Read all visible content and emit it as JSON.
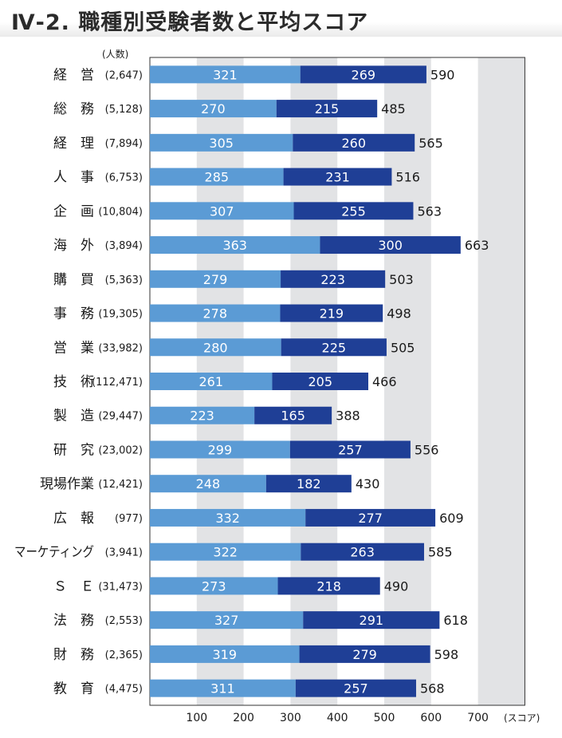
{
  "title": "Ⅳ-2. 職種別受験者数と平均スコア",
  "y_unit": "(人数)",
  "x_unit": "(スコア)",
  "colors": {
    "listening": "#5b9bd5",
    "reading": "#1f3f96",
    "band": "#e2e3e5",
    "axis": "#333333"
  },
  "chart_data": {
    "type": "bar",
    "orientation": "horizontal",
    "stacked": true,
    "categories": [
      "経　営",
      "総　務",
      "経　理",
      "人　事",
      "企　画",
      "海　外",
      "購　買",
      "事　務",
      "営　業",
      "技　術",
      "製　造",
      "研　究",
      "現場作業",
      "広　報",
      "マーケティング",
      "Ｓ　Ｅ",
      "法　務",
      "財　務",
      "教　育"
    ],
    "counts": [
      "(2,647)",
      "(5,128)",
      "(7,894)",
      "(6,753)",
      "(10,804)",
      "(3,894)",
      "(5,363)",
      "(19,305)",
      "(33,982)",
      "(112,471)",
      "(29,447)",
      "(23,002)",
      "(12,421)",
      "(977)",
      "(3,941)",
      "(31,473)",
      "(2,553)",
      "(2,365)",
      "(4,475)"
    ],
    "series": [
      {
        "values": [
          321,
          270,
          305,
          285,
          307,
          363,
          279,
          278,
          280,
          261,
          223,
          299,
          248,
          332,
          322,
          273,
          327,
          319,
          311
        ]
      },
      {
        "values": [
          269,
          215,
          260,
          231,
          255,
          300,
          223,
          219,
          225,
          205,
          165,
          257,
          182,
          277,
          263,
          218,
          291,
          279,
          257
        ]
      }
    ],
    "totals": [
      590,
      485,
      565,
      516,
      563,
      663,
      503,
      498,
      505,
      466,
      388,
      556,
      430,
      609,
      585,
      490,
      618,
      598,
      568
    ],
    "xticks": [
      100,
      200,
      300,
      400,
      500,
      600,
      700
    ],
    "xlim": [
      0,
      800
    ]
  }
}
